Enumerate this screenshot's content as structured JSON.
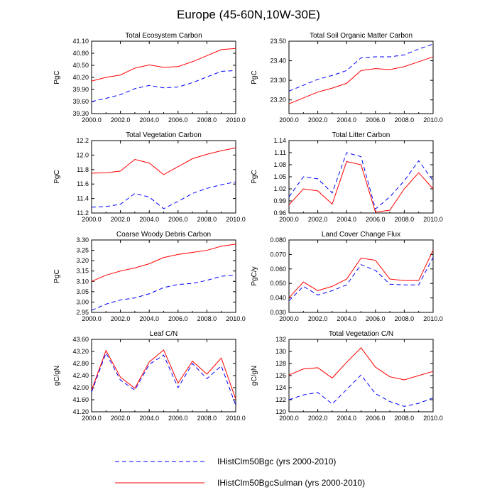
{
  "page": {
    "title": "Europe (45-60N,10W-30E)"
  },
  "legend": {
    "entries": [
      {
        "label": "IHistClm50Bgc (yrs 2000-2010)",
        "color": "#0000ff",
        "dash": "dashed"
      },
      {
        "label": "IHistClm50BgcSulman (yrs 2000-2010)",
        "color": "#ff0000",
        "dash": "solid"
      }
    ]
  },
  "chart_data": [
    {
      "type": "line",
      "title": "Total Ecosystem Carbon",
      "ylabel": "PgC",
      "xlim": [
        2000,
        2010
      ],
      "ylim": [
        39.3,
        41.1
      ],
      "xticks": [
        2000,
        2002,
        2004,
        2006,
        2008,
        2010
      ],
      "xtick_labels": [
        "2000.0",
        "2002.0",
        "2004.0",
        "2006.0",
        "2008.0",
        "2010.0"
      ],
      "yticks": [
        39.3,
        39.6,
        39.9,
        40.2,
        40.5,
        40.8,
        41.1
      ],
      "ytick_labels": [
        "39.30",
        "39.60",
        "39.90",
        "40.20",
        "40.50",
        "40.80",
        "41.10"
      ],
      "x": [
        2000,
        2001,
        2002,
        2003,
        2004,
        2005,
        2006,
        2007,
        2008,
        2009,
        2010
      ],
      "series": [
        {
          "name": "IHistClm50Bgc",
          "values": [
            39.6,
            39.68,
            39.77,
            39.92,
            40.0,
            39.94,
            39.96,
            40.07,
            40.21,
            40.35,
            40.37
          ]
        },
        {
          "name": "IHistClm50BgcSulman",
          "values": [
            40.11,
            40.2,
            40.26,
            40.43,
            40.51,
            40.45,
            40.47,
            40.59,
            40.74,
            40.89,
            40.92
          ]
        }
      ]
    },
    {
      "type": "line",
      "title": "Total Soil Organic Matter Carbon",
      "ylabel": "PgC",
      "xlim": [
        2000,
        2010
      ],
      "ylim": [
        23.13,
        23.5
      ],
      "xticks": [
        2000,
        2002,
        2004,
        2006,
        2008,
        2010
      ],
      "xtick_labels": [
        "2000.0",
        "2002.0",
        "2004.0",
        "2006.0",
        "2008.0",
        "2010.0"
      ],
      "yticks": [
        23.2,
        23.3,
        23.4,
        23.5
      ],
      "ytick_labels": [
        "23.20",
        "23.30",
        "23.40",
        "23.50"
      ],
      "x": [
        2000,
        2001,
        2002,
        2003,
        2004,
        2005,
        2006,
        2007,
        2008,
        2009,
        2010
      ],
      "series": [
        {
          "name": "IHistClm50Bgc",
          "values": [
            23.245,
            23.275,
            23.305,
            23.325,
            23.35,
            23.415,
            23.42,
            23.42,
            23.43,
            23.46,
            23.485
          ]
        },
        {
          "name": "IHistClm50BgcSulman",
          "values": [
            23.18,
            23.21,
            23.24,
            23.26,
            23.285,
            23.35,
            23.36,
            23.355,
            23.37,
            23.395,
            23.42
          ]
        }
      ]
    },
    {
      "type": "line",
      "title": "Total Vegetation Carbon",
      "ylabel": "PgC",
      "xlim": [
        2000,
        2010
      ],
      "ylim": [
        11.2,
        12.2
      ],
      "xticks": [
        2000,
        2002,
        2004,
        2006,
        2008,
        2010
      ],
      "xtick_labels": [
        "2000.0",
        "2002.0",
        "2004.0",
        "2006.0",
        "2008.0",
        "2010.0"
      ],
      "yticks": [
        11.2,
        11.4,
        11.6,
        11.8,
        12.0,
        12.2
      ],
      "ytick_labels": [
        "11.2",
        "11.4",
        "11.6",
        "11.8",
        "12.0",
        "12.2"
      ],
      "x": [
        2000,
        2001,
        2002,
        2003,
        2004,
        2005,
        2006,
        2007,
        2008,
        2009,
        2010
      ],
      "series": [
        {
          "name": "IHistClm50Bgc",
          "values": [
            11.28,
            11.29,
            11.32,
            11.47,
            11.42,
            11.26,
            11.36,
            11.47,
            11.54,
            11.59,
            11.63
          ]
        },
        {
          "name": "IHistClm50BgcSulman",
          "values": [
            11.75,
            11.755,
            11.78,
            11.94,
            11.89,
            11.73,
            11.84,
            11.95,
            12.01,
            12.06,
            12.1
          ]
        }
      ]
    },
    {
      "type": "line",
      "title": "Total Litter Carbon",
      "ylabel": "PgC",
      "xlim": [
        2000,
        2010
      ],
      "ylim": [
        0.96,
        1.14
      ],
      "xticks": [
        2000,
        2002,
        2004,
        2006,
        2008,
        2010
      ],
      "xtick_labels": [
        "2000.0",
        "2002.0",
        "2004.0",
        "2006.0",
        "2008.0",
        "2010.0"
      ],
      "yticks": [
        0.96,
        0.99,
        1.02,
        1.05,
        1.08,
        1.11,
        1.14
      ],
      "ytick_labels": [
        "0.96",
        "0.99",
        "1.02",
        "1.05",
        "1.08",
        "1.11",
        "1.14"
      ],
      "x": [
        2000,
        2001,
        2002,
        2003,
        2004,
        2005,
        2006,
        2007,
        2008,
        2009,
        2010
      ],
      "series": [
        {
          "name": "IHistClm50Bgc",
          "values": [
            1.0,
            1.05,
            1.045,
            1.01,
            1.11,
            1.1,
            0.97,
            1.0,
            1.04,
            1.09,
            1.04
          ]
        },
        {
          "name": "IHistClm50BgcSulman",
          "values": [
            0.98,
            1.02,
            1.015,
            0.982,
            1.088,
            1.08,
            0.962,
            0.967,
            1.02,
            1.06,
            1.02
          ]
        }
      ]
    },
    {
      "type": "line",
      "title": "Coarse Woody Debris Carbon",
      "ylabel": "PgC",
      "xlim": [
        2000,
        2010
      ],
      "ylim": [
        2.95,
        3.3
      ],
      "xticks": [
        2000,
        2002,
        2004,
        2006,
        2008,
        2010
      ],
      "xtick_labels": [
        "2000.0",
        "2002.0",
        "2004.0",
        "2006.0",
        "2008.0",
        "2010.0"
      ],
      "yticks": [
        2.95,
        3.0,
        3.05,
        3.1,
        3.15,
        3.2,
        3.25,
        3.3
      ],
      "ytick_labels": [
        "2.95",
        "3.00",
        "3.05",
        "3.10",
        "3.15",
        "3.20",
        "3.25",
        "3.30"
      ],
      "x": [
        2000,
        2001,
        2002,
        2003,
        2004,
        2005,
        2006,
        2007,
        2008,
        2009,
        2010
      ],
      "series": [
        {
          "name": "IHistClm50Bgc",
          "values": [
            2.96,
            2.99,
            3.01,
            3.02,
            3.04,
            3.07,
            3.085,
            3.09,
            3.105,
            3.125,
            3.13
          ]
        },
        {
          "name": "IHistClm50BgcSulman",
          "values": [
            3.1,
            3.13,
            3.15,
            3.165,
            3.185,
            3.215,
            3.23,
            3.24,
            3.25,
            3.27,
            3.28
          ]
        }
      ]
    },
    {
      "type": "line",
      "title": "Land Cover Change Flux",
      "ylabel": "PgC/y",
      "xlim": [
        2000,
        2010
      ],
      "ylim": [
        0.03,
        0.08
      ],
      "xticks": [
        2000,
        2002,
        2004,
        2006,
        2008,
        2010
      ],
      "xtick_labels": [
        "2000.0",
        "2002.0",
        "2004.0",
        "2006.0",
        "2008.0",
        "2010.0"
      ],
      "yticks": [
        0.03,
        0.04,
        0.05,
        0.06,
        0.07,
        0.08
      ],
      "ytick_labels": [
        "0.030",
        "0.040",
        "0.050",
        "0.060",
        "0.070",
        "0.080"
      ],
      "x": [
        2000,
        2001,
        2002,
        2003,
        2004,
        2005,
        2006,
        2007,
        2008,
        2009,
        2010
      ],
      "series": [
        {
          "name": "IHistClm50Bgc",
          "values": [
            0.038,
            0.048,
            0.042,
            0.045,
            0.049,
            0.063,
            0.059,
            0.0495,
            0.049,
            0.049,
            0.068
          ]
        },
        {
          "name": "IHistClm50BgcSulman",
          "values": [
            0.04,
            0.051,
            0.045,
            0.048,
            0.053,
            0.0675,
            0.066,
            0.053,
            0.052,
            0.052,
            0.073
          ]
        }
      ]
    },
    {
      "type": "line",
      "title": "Leaf C/N",
      "ylabel": "gC/gN",
      "xlim": [
        2000,
        2010
      ],
      "ylim": [
        41.2,
        43.6
      ],
      "xticks": [
        2000,
        2002,
        2004,
        2006,
        2008,
        2010
      ],
      "xtick_labels": [
        "2000.0",
        "2002.0",
        "2004.0",
        "2006.0",
        "2008.0",
        "2010.0"
      ],
      "yticks": [
        41.2,
        41.6,
        42.0,
        42.4,
        42.8,
        43.2,
        43.6
      ],
      "ytick_labels": [
        "41.20",
        "41.60",
        "42.00",
        "42.40",
        "42.80",
        "43.20",
        "43.60"
      ],
      "x": [
        2000,
        2001,
        2002,
        2003,
        2004,
        2005,
        2006,
        2007,
        2008,
        2009,
        2010
      ],
      "series": [
        {
          "name": "IHistClm50Bgc",
          "values": [
            41.85,
            43.15,
            42.25,
            41.92,
            42.77,
            43.08,
            42.0,
            42.8,
            42.3,
            42.72,
            41.42
          ]
        },
        {
          "name": "IHistClm50BgcSulman",
          "values": [
            41.92,
            43.23,
            42.35,
            41.98,
            42.85,
            43.25,
            42.15,
            42.88,
            42.45,
            42.98,
            41.62
          ]
        }
      ]
    },
    {
      "type": "line",
      "title": "Total Vegetation C/N",
      "ylabel": "gC/gN",
      "xlim": [
        2000,
        2010
      ],
      "ylim": [
        120,
        132
      ],
      "xticks": [
        2000,
        2002,
        2004,
        2006,
        2008,
        2010
      ],
      "xtick_labels": [
        "2000.0",
        "2002.0",
        "2004.0",
        "2006.0",
        "2008.0",
        "2010.0"
      ],
      "yticks": [
        120,
        122,
        124,
        126,
        128,
        130,
        132
      ],
      "ytick_labels": [
        "120",
        "122",
        "124",
        "126",
        "128",
        "130",
        "132"
      ],
      "x": [
        2000,
        2001,
        2002,
        2003,
        2004,
        2005,
        2006,
        2007,
        2008,
        2009,
        2010
      ],
      "series": [
        {
          "name": "IHistClm50Bgc",
          "values": [
            122.0,
            122.8,
            123.2,
            121.3,
            123.7,
            126.1,
            123.0,
            121.7,
            120.9,
            121.4,
            122.3
          ]
        },
        {
          "name": "IHistClm50BgcSulman",
          "values": [
            126.1,
            127.1,
            127.3,
            125.6,
            128.2,
            130.6,
            127.4,
            125.8,
            125.3,
            126.0,
            126.7
          ]
        }
      ]
    }
  ]
}
